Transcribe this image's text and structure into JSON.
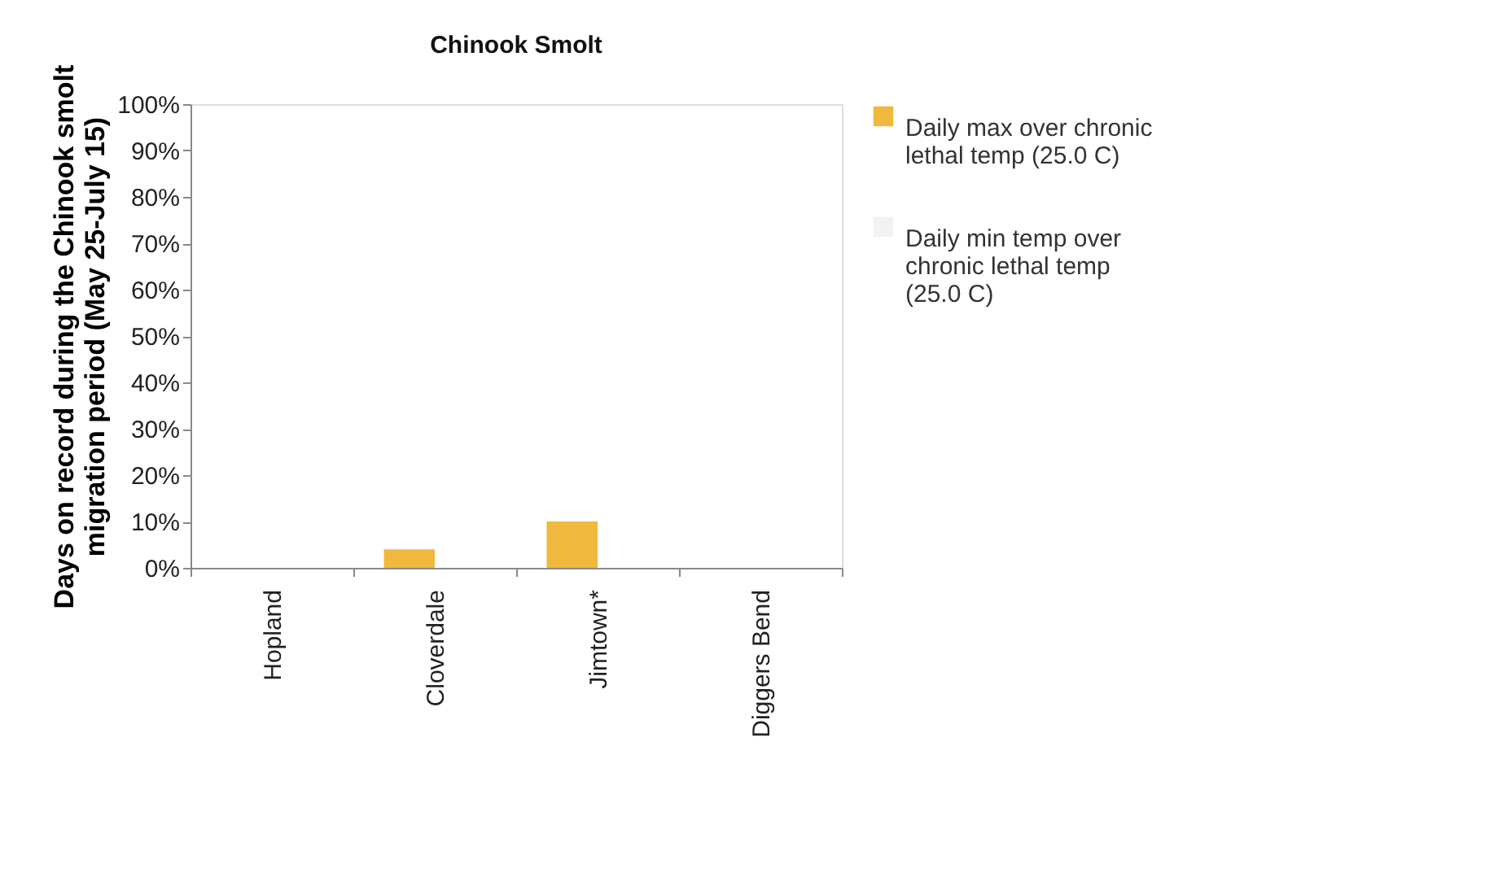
{
  "chart_data": {
    "type": "bar",
    "title": "Chinook Smolt",
    "ylabel": "Days on record during the Chinook smolt migration period (May 25-July 15)",
    "categories": [
      "Hopland",
      "Cloverdale",
      "Jimtown*",
      "Diggers Bend"
    ],
    "series": [
      {
        "name": "Daily max over chronic lethal temp (25.0 C)",
        "color": "#f0b83c",
        "values": [
          0,
          4,
          10,
          0
        ]
      },
      {
        "name": "Daily min temp over chronic lethal temp (25.0 C)",
        "color": "#f2f2f2",
        "values": [
          0,
          0,
          0,
          0
        ]
      }
    ],
    "ylim": [
      0,
      100
    ],
    "yticks": [
      {
        "value": 0,
        "label": "0%"
      },
      {
        "value": 10,
        "label": "10%"
      },
      {
        "value": 20,
        "label": "20%"
      },
      {
        "value": 30,
        "label": "30%"
      },
      {
        "value": 40,
        "label": "40%"
      },
      {
        "value": 50,
        "label": "50%"
      },
      {
        "value": 60,
        "label": "60%"
      },
      {
        "value": 70,
        "label": "70%"
      },
      {
        "value": 80,
        "label": "80%"
      },
      {
        "value": 90,
        "label": "90%"
      },
      {
        "value": 100,
        "label": "100%"
      }
    ],
    "grid": false,
    "legend": "right"
  }
}
